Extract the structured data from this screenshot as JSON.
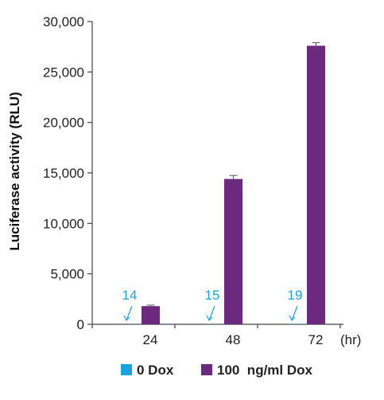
{
  "chart_data": {
    "type": "bar",
    "title": "",
    "xlabel": "",
    "x_unit": "(hr)",
    "ylabel": "Luciferase activity (RLU)",
    "ylim": [
      0,
      30000
    ],
    "yticks": [
      0,
      5000,
      10000,
      15000,
      20000,
      25000,
      30000
    ],
    "ytick_labels": [
      "0",
      "5,000",
      "10,000",
      "15,000",
      "20,000",
      "25,000",
      "30,000"
    ],
    "categories": [
      "24",
      "48",
      "72"
    ],
    "grid": false,
    "legend_position": "bottom",
    "series": [
      {
        "name": "0 Dox",
        "color": "#1aa3dc",
        "values": [
          14,
          15,
          19
        ],
        "labels": [
          "14",
          "15",
          "19"
        ]
      },
      {
        "name": "100  ng/ml Dox",
        "color": "#6b2a7e",
        "values": [
          1800,
          14400,
          27600
        ],
        "errors": [
          100,
          350,
          300
        ]
      }
    ]
  }
}
